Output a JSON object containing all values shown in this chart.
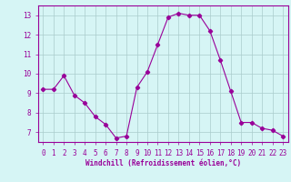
{
  "x": [
    0,
    1,
    2,
    3,
    4,
    5,
    6,
    7,
    8,
    9,
    10,
    11,
    12,
    13,
    14,
    15,
    16,
    17,
    18,
    19,
    20,
    21,
    22,
    23
  ],
  "y": [
    9.2,
    9.2,
    9.9,
    8.9,
    8.5,
    7.8,
    7.4,
    6.7,
    6.8,
    9.3,
    10.1,
    11.5,
    12.9,
    13.1,
    13.0,
    13.0,
    12.2,
    10.7,
    9.1,
    7.5,
    7.5,
    7.2,
    7.1,
    6.8
  ],
  "line_color": "#990099",
  "marker": "D",
  "marker_size": 2.2,
  "background_color": "#d6f5f5",
  "grid_color": "#aacccc",
  "xlabel": "Windchill (Refroidissement éolien,°C)",
  "xlabel_color": "#990099",
  "tick_color": "#990099",
  "ylim": [
    6.5,
    13.5
  ],
  "xlim": [
    -0.5,
    23.5
  ],
  "yticks": [
    7,
    8,
    9,
    10,
    11,
    12,
    13
  ],
  "xticks": [
    0,
    1,
    2,
    3,
    4,
    5,
    6,
    7,
    8,
    9,
    10,
    11,
    12,
    13,
    14,
    15,
    16,
    17,
    18,
    19,
    20,
    21,
    22,
    23
  ],
  "tick_fontsize": 5.5,
  "xlabel_fontsize": 5.5
}
